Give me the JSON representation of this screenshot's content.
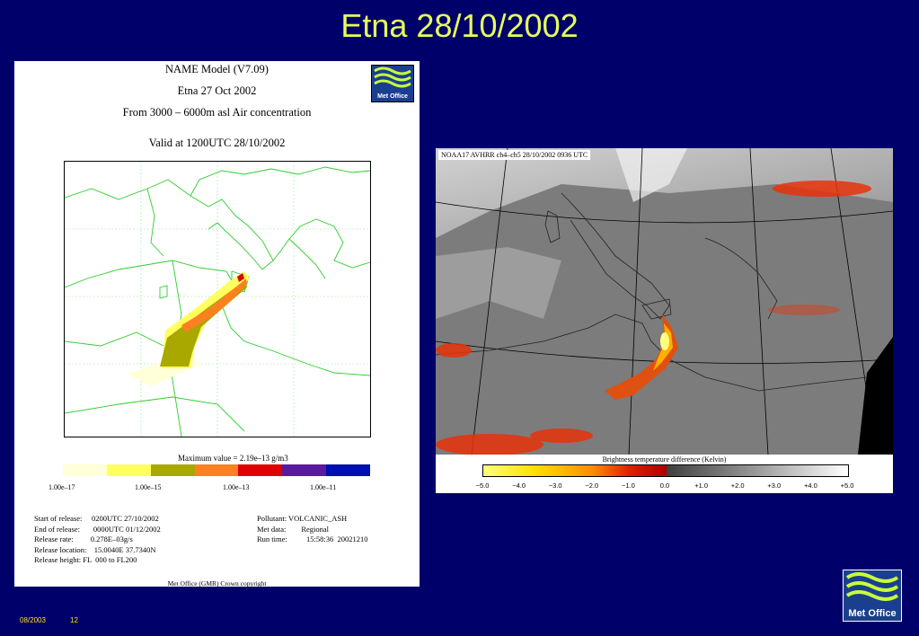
{
  "title": "Etna 28/10/2002",
  "left": {
    "header1": "NAME Model (V7.09)",
    "header2": "Etna 27 Oct 2002",
    "header3": "From  3000 –  6000m asl Air concentration",
    "header4": "Valid at 1200UTC 28/10/2002",
    "max_value": "Maximum value = 2.19e–13 g/m3",
    "scale_labels": [
      "1.00e–17",
      "1.00e–15",
      "1.00e–13",
      "1.00e–11"
    ],
    "scale_colors": [
      "#ffffd8",
      "#ffff60",
      "#a8a800",
      "#ff8020",
      "#e00000",
      "#5a1aa0",
      "#0010b0"
    ],
    "info_left": "Start of release:     0200UTC 27/10/2002\nEnd of release:       0000UTC 01/12/2002\nRelease rate:         0.278E–03g/s\nRelease location:    15.0040E 37.7340N\nRelease height: FL  000 to FL200",
    "info_right": "Pollutant: VOLCANIC_ASH\nMet data:        Regional\nRun time:          15:58:36  20021210",
    "copyright": "Met Office (GMR)  Crown copyright",
    "logo": "Met Office"
  },
  "right": {
    "sat_label": "NOAA17 AVHRR ch4–ch5 28/10/2002 0936 UTC",
    "bar_title": "Brightness temperature difference (Kelvin)",
    "ticks": [
      "−5.0",
      "−4.0",
      "−3.0",
      "−2.0",
      "−1.0",
      "0.0",
      "+1.0",
      "+2.0",
      "+3.0",
      "+4.0",
      "+5.0"
    ]
  },
  "logo": "Met Office",
  "footer": {
    "date": "08/2003",
    "page": "12"
  }
}
